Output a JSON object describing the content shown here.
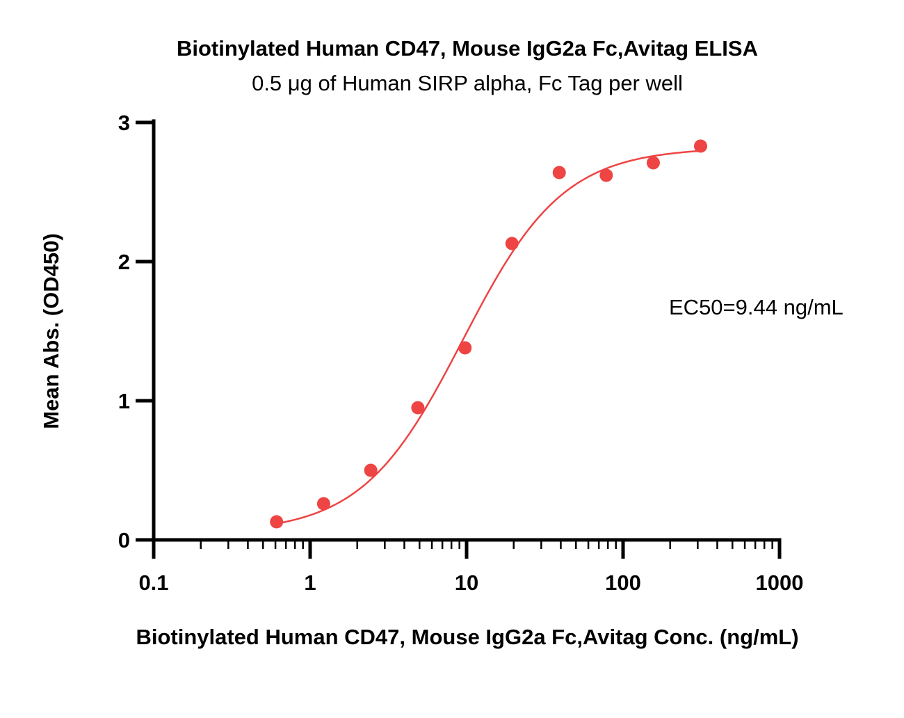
{
  "chart_data": {
    "type": "scatter",
    "title": "Biotinylated Human CD47, Mouse IgG2a Fc,Avitag ELISA",
    "subtitle": "0.5 μg of Human SIRP alpha, Fc Tag per well",
    "xlabel": "Biotinylated Human CD47, Mouse IgG2a Fc,Avitag Conc. (ng/mL)",
    "ylabel": "Mean Abs. (OD450)",
    "xscale": "log",
    "xlim": [
      0.1,
      1000
    ],
    "ylim": [
      0,
      3
    ],
    "x_ticks": [
      "0.1",
      "1",
      "10",
      "100",
      "1000"
    ],
    "y_ticks": [
      "0",
      "1",
      "2",
      "3"
    ],
    "grid": false,
    "legend": "none",
    "annotation": "EC50=9.44 ng/mL",
    "colors": {
      "series": "#ee4444",
      "axis": "#000000"
    },
    "series": [
      {
        "x": [
          0.61,
          1.22,
          2.44,
          4.88,
          9.77,
          19.5,
          39.1,
          78.1,
          156,
          313
        ],
        "y": [
          0.13,
          0.26,
          0.5,
          0.95,
          1.38,
          2.13,
          2.64,
          2.62,
          2.71,
          2.83
        ]
      }
    ],
    "fit": {
      "model": "4PL",
      "bottom": 0.05,
      "top": 2.82,
      "ec50": 9.44,
      "hill": 1.35
    }
  }
}
